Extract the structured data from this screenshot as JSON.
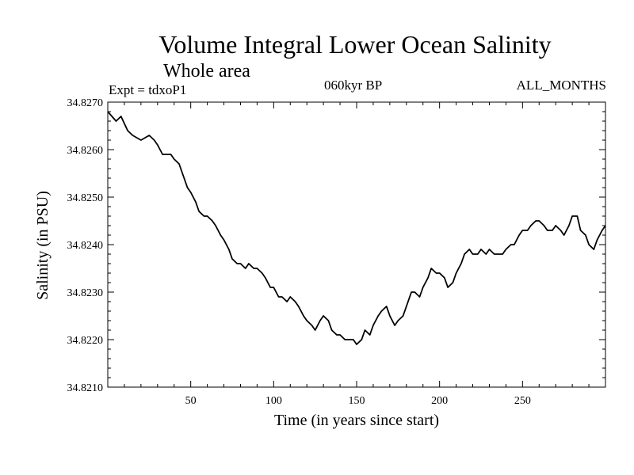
{
  "header": {
    "title": "Volume Integral Lower Ocean Salinity",
    "subtitle": "Whole area",
    "experiment": "Expt = tdxoP1",
    "period": "060kyr BP",
    "months": "ALL_MONTHS"
  },
  "chart_data": {
    "type": "line",
    "title": "Volume Integral Lower Ocean Salinity",
    "subtitle": "Whole area",
    "xlabel": "Time (in years since start)",
    "ylabel": "Salinity (in PSU)",
    "xlim": [
      0,
      300
    ],
    "ylim": [
      34.821,
      34.827
    ],
    "xticks": [
      50,
      100,
      150,
      200,
      250
    ],
    "yticks": [
      34.821,
      34.822,
      34.823,
      34.824,
      34.825,
      34.826,
      34.827
    ],
    "ytick_labels": [
      "34.8210",
      "34.8220",
      "34.8230",
      "34.8240",
      "34.8250",
      "34.8260",
      "34.8270"
    ],
    "grid": false,
    "series": [
      {
        "name": "Salinity",
        "x": [
          0,
          5,
          8,
          12,
          15,
          20,
          25,
          28,
          30,
          33,
          35,
          38,
          40,
          43,
          45,
          48,
          50,
          53,
          55,
          58,
          60,
          63,
          65,
          68,
          70,
          73,
          75,
          78,
          80,
          83,
          85,
          88,
          90,
          93,
          95,
          98,
          100,
          103,
          105,
          108,
          110,
          113,
          115,
          118,
          120,
          123,
          125,
          128,
          130,
          133,
          135,
          138,
          140,
          143,
          145,
          148,
          150,
          153,
          155,
          158,
          160,
          163,
          165,
          168,
          170,
          173,
          175,
          178,
          180,
          183,
          185,
          188,
          190,
          193,
          195,
          198,
          200,
          203,
          205,
          208,
          210,
          213,
          215,
          218,
          220,
          223,
          225,
          228,
          230,
          233,
          235,
          238,
          240,
          243,
          245,
          248,
          250,
          253,
          255,
          258,
          260,
          263,
          265,
          268,
          270,
          273,
          275,
          278,
          280,
          283,
          285,
          288,
          290,
          293,
          295,
          298,
          300
        ],
        "values": [
          34.8268,
          34.8266,
          34.8267,
          34.8264,
          34.8263,
          34.8262,
          34.8263,
          34.8262,
          34.8261,
          34.8259,
          34.8259,
          34.8259,
          34.8258,
          34.8257,
          34.8255,
          34.8252,
          34.8251,
          34.8249,
          34.8247,
          34.8246,
          34.8246,
          34.8245,
          34.8244,
          34.8242,
          34.8241,
          34.8239,
          34.8237,
          34.8236,
          34.8236,
          34.8235,
          34.8236,
          34.8235,
          34.8235,
          34.8234,
          34.8233,
          34.8231,
          34.8231,
          34.8229,
          34.8229,
          34.8228,
          34.8229,
          34.8228,
          34.8227,
          34.8225,
          34.8224,
          34.8223,
          34.8222,
          34.8224,
          34.8225,
          34.8224,
          34.8222,
          34.8221,
          34.8221,
          34.822,
          34.822,
          34.822,
          34.8219,
          34.822,
          34.8222,
          34.8221,
          34.8223,
          34.8225,
          34.8226,
          34.8227,
          34.8225,
          34.8223,
          34.8224,
          34.8225,
          34.8227,
          34.823,
          34.823,
          34.8229,
          34.8231,
          34.8233,
          34.8235,
          34.8234,
          34.8234,
          34.8233,
          34.8231,
          34.8232,
          34.8234,
          34.8236,
          34.8238,
          34.8239,
          34.8238,
          34.8238,
          34.8239,
          34.8238,
          34.8239,
          34.8238,
          34.8238,
          34.8238,
          34.8239,
          34.824,
          34.824,
          34.8242,
          34.8243,
          34.8243,
          34.8244,
          34.8245,
          34.8245,
          34.8244,
          34.8243,
          34.8243,
          34.8244,
          34.8243,
          34.8242,
          34.8244,
          34.8246,
          34.8246,
          34.8243,
          34.8242,
          34.824,
          34.8239,
          34.8241,
          34.8243,
          34.8244
        ]
      }
    ]
  }
}
